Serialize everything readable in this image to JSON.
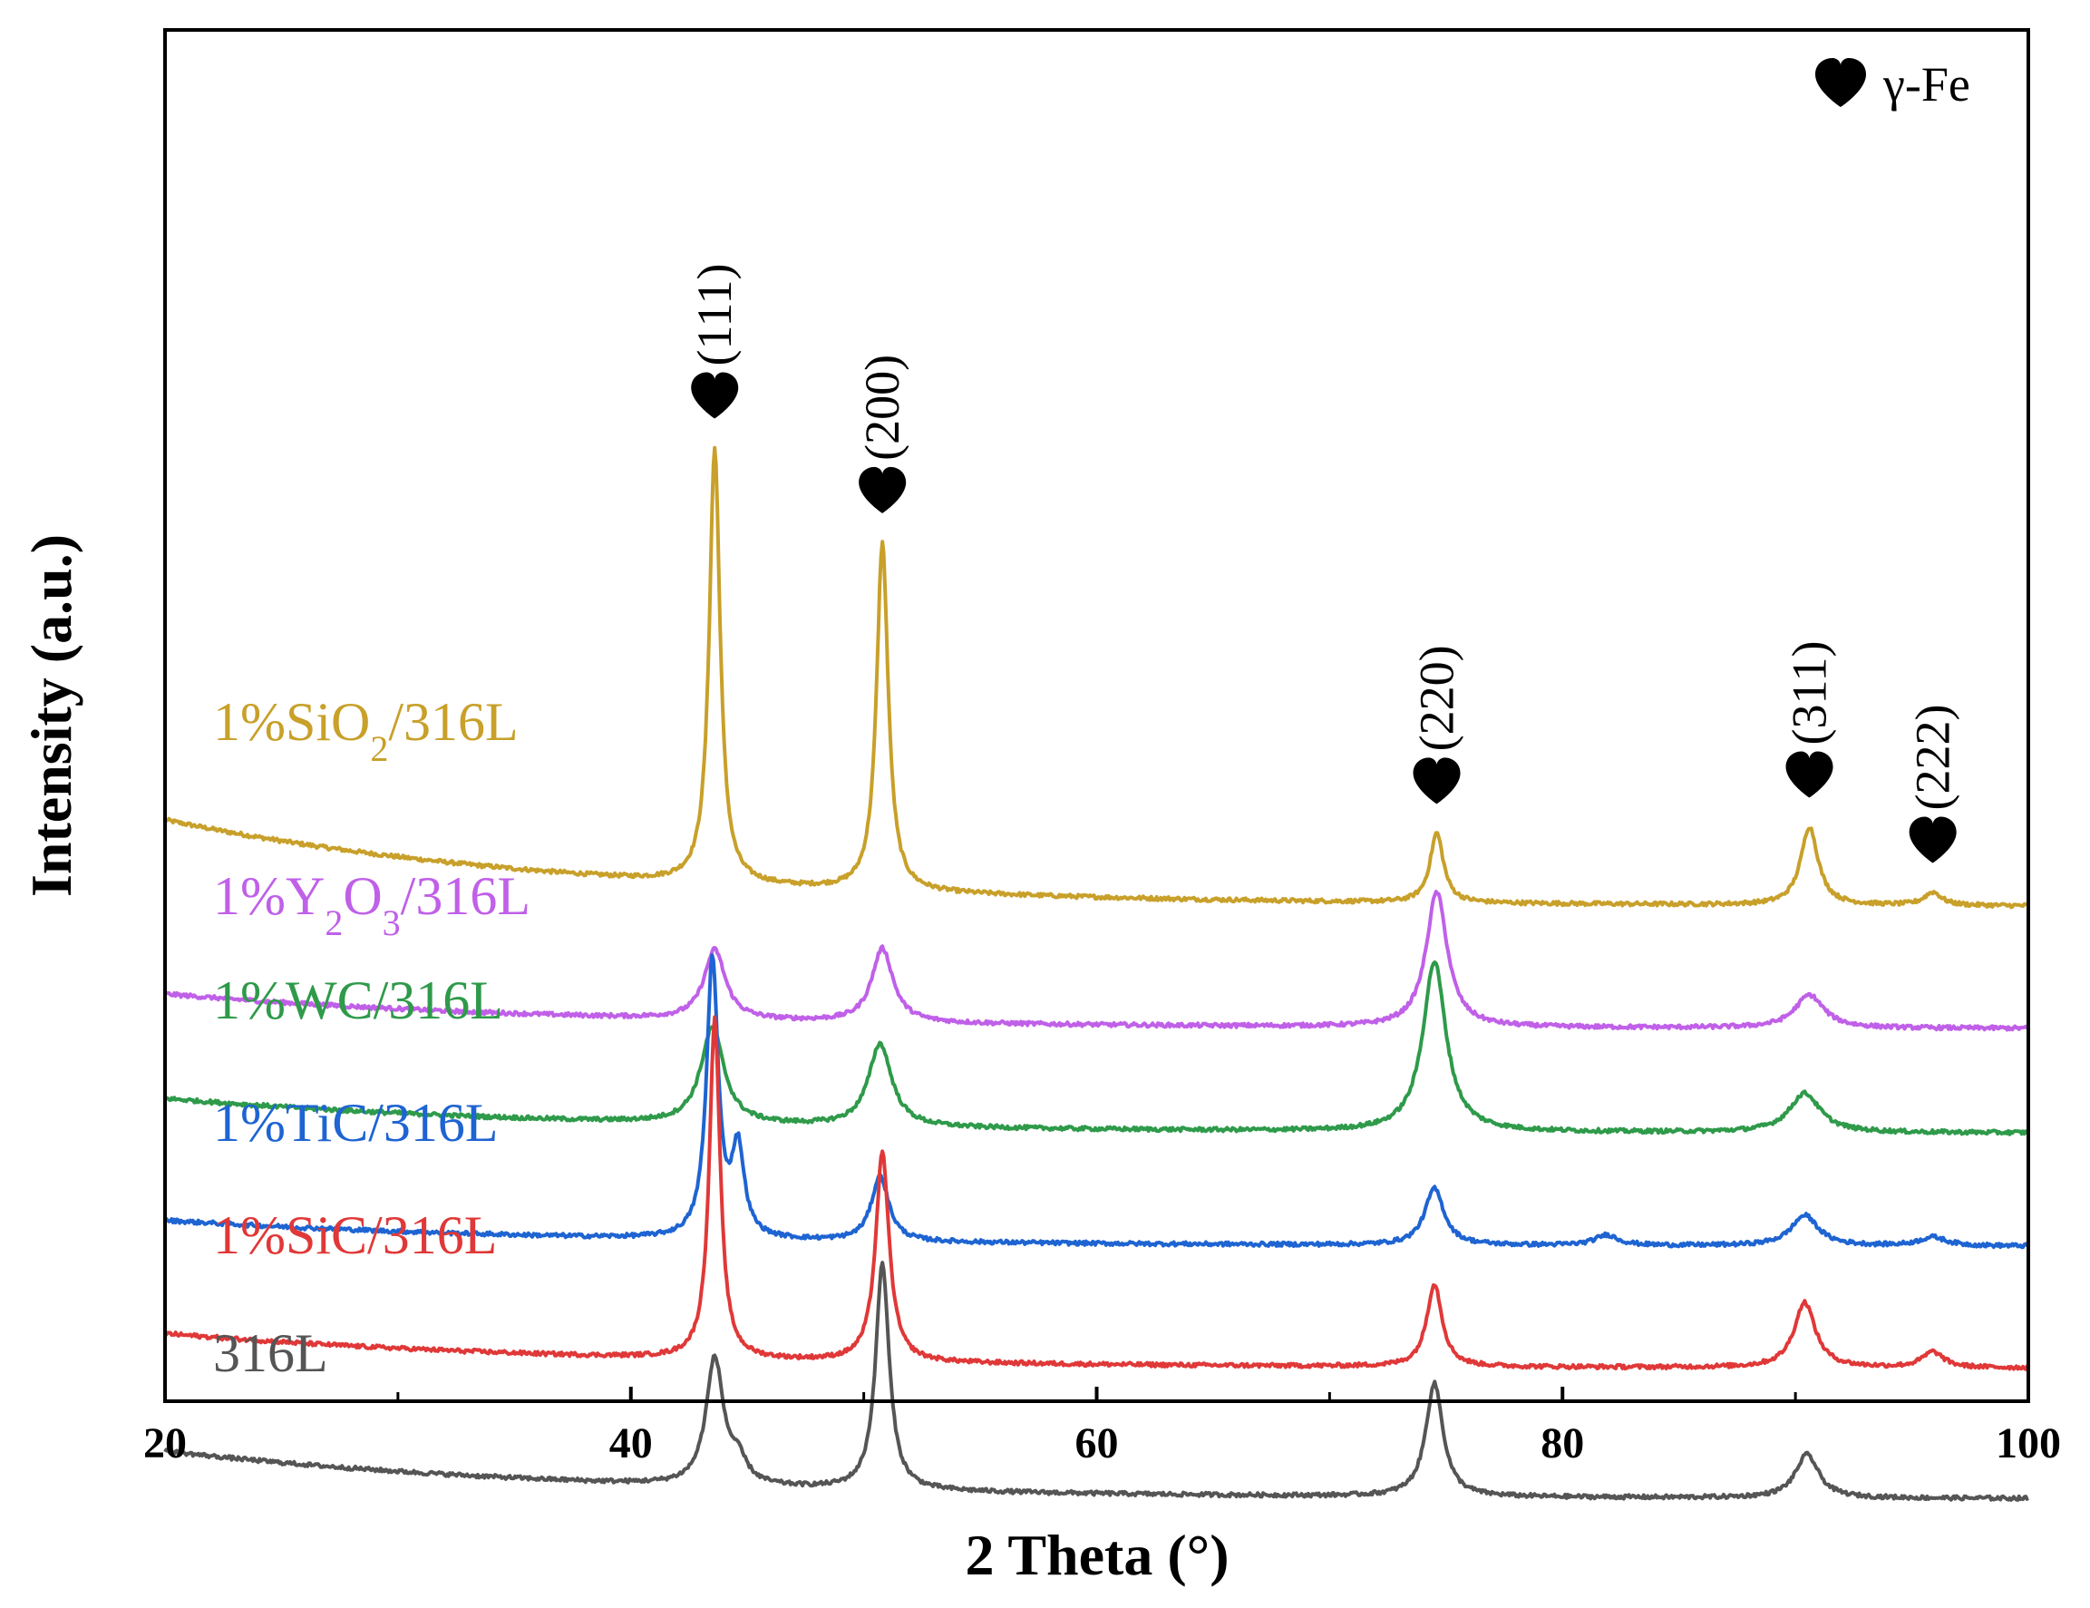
{
  "chart_data": {
    "type": "line",
    "xlabel": "2 Theta (°)",
    "ylabel": "Intensity (a.u.)",
    "xlim": [
      20,
      100
    ],
    "xticks": [
      20,
      40,
      60,
      80,
      100
    ],
    "x_minor_ticks": [
      30,
      50,
      70,
      90
    ],
    "yticks": "none",
    "legend": {
      "symbol": "heart",
      "label": "γ-Fe",
      "position": "top-right"
    },
    "peak_annotations": [
      {
        "label": "(111)",
        "x": 43.6
      },
      {
        "label": "(200)",
        "x": 50.8
      },
      {
        "label": "(220)",
        "x": 74.6
      },
      {
        "label": "(311)",
        "x": 90.6
      },
      {
        "label": "(222)",
        "x": 95.9
      }
    ],
    "series": [
      {
        "name": "1%SiO2/316L",
        "label_main": "1%SiO",
        "label_sub": "2",
        "label_tail": "/316L",
        "color": "#c8a02a",
        "offset": 5.0,
        "background": [
          1.0,
          0.0
        ],
        "peaks": [
          {
            "x": 43.6,
            "height": 5.0,
            "width": 0.28
          },
          {
            "x": 50.8,
            "height": 4.0,
            "width": 0.3
          },
          {
            "x": 74.6,
            "height": 0.8,
            "width": 0.35
          },
          {
            "x": 90.6,
            "height": 0.9,
            "width": 0.45
          },
          {
            "x": 95.9,
            "height": 0.15,
            "width": 0.45
          }
        ]
      },
      {
        "name": "1%Y2O3/316L",
        "label_main": "1%Y",
        "label_sub": "2",
        "label_mid": "O",
        "label_sub2": "3",
        "label_tail": "/316L",
        "color": "#c060e8",
        "offset": 3.6,
        "background": [
          0.4,
          0.0
        ],
        "peaks": [
          {
            "x": 43.6,
            "height": 0.8,
            "width": 0.55
          },
          {
            "x": 50.8,
            "height": 0.85,
            "width": 0.55
          },
          {
            "x": 74.6,
            "height": 1.55,
            "width": 0.55
          },
          {
            "x": 90.6,
            "height": 0.38,
            "width": 0.75
          }
        ]
      },
      {
        "name": "1%WC/316L",
        "label_main": "1%WC/316L",
        "color": "#2e9a4a",
        "offset": 2.4,
        "background": [
          0.4,
          0.0
        ],
        "peaks": [
          {
            "x": 43.5,
            "height": 1.1,
            "width": 0.6
          },
          {
            "x": 50.7,
            "height": 0.95,
            "width": 0.6
          },
          {
            "x": 74.5,
            "height": 1.95,
            "width": 0.6
          },
          {
            "x": 90.4,
            "height": 0.45,
            "width": 0.8
          }
        ]
      },
      {
        "name": "1%TiC/316L",
        "label_main": "1%TiC/316L",
        "color": "#1e64d2",
        "offset": 1.1,
        "background": [
          0.3,
          0.0
        ],
        "peaks": [
          {
            "x": 43.5,
            "height": 3.2,
            "width": 0.3
          },
          {
            "x": 44.6,
            "height": 1.0,
            "width": 0.32
          },
          {
            "x": 50.7,
            "height": 0.75,
            "width": 0.45
          },
          {
            "x": 74.5,
            "height": 0.65,
            "width": 0.5
          },
          {
            "x": 81.9,
            "height": 0.12,
            "width": 0.6
          },
          {
            "x": 90.4,
            "height": 0.35,
            "width": 0.7
          },
          {
            "x": 95.9,
            "height": 0.1,
            "width": 0.7
          }
        ]
      },
      {
        "name": "1%SiC/316L",
        "label_main": "1%SiC/316L",
        "color": "#e03838",
        "offset": -0.3,
        "background": [
          0.4,
          0.0
        ],
        "peaks": [
          {
            "x": 43.6,
            "height": 3.9,
            "width": 0.28
          },
          {
            "x": 50.8,
            "height": 2.4,
            "width": 0.35
          },
          {
            "x": 74.5,
            "height": 0.95,
            "width": 0.4
          },
          {
            "x": 90.4,
            "height": 0.75,
            "width": 0.55
          },
          {
            "x": 95.9,
            "height": 0.18,
            "width": 0.55
          }
        ]
      },
      {
        "name": "316L",
        "label_main": "316L",
        "color": "#555555",
        "offset": -1.8,
        "background": [
          0.55,
          0.0
        ],
        "peaks": [
          {
            "x": 43.6,
            "height": 1.45,
            "width": 0.45
          },
          {
            "x": 44.6,
            "height": 0.25,
            "width": 0.45
          },
          {
            "x": 50.8,
            "height": 2.6,
            "width": 0.35
          },
          {
            "x": 74.5,
            "height": 1.3,
            "width": 0.45
          },
          {
            "x": 90.5,
            "height": 0.5,
            "width": 0.6
          }
        ]
      }
    ]
  }
}
